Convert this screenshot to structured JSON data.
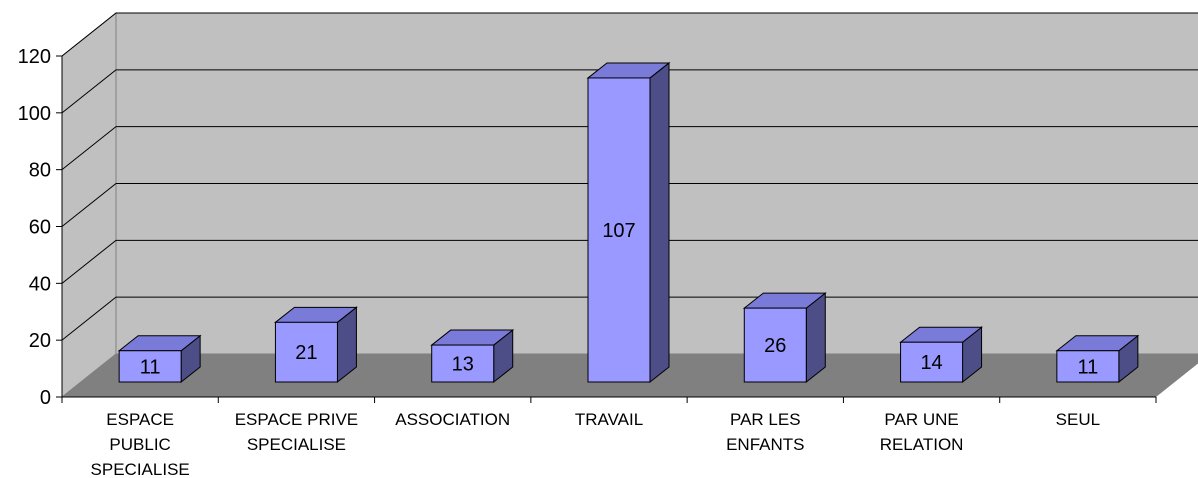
{
  "chart_data": {
    "type": "bar",
    "style": "3d-column",
    "title": "",
    "xlabel": "",
    "ylabel": "",
    "categories": [
      [
        "ESPACE",
        "PUBLIC",
        "SPECIALISE"
      ],
      [
        "ESPACE PRIVE",
        "SPECIALISE"
      ],
      [
        "ASSOCIATION"
      ],
      [
        "TRAVAIL"
      ],
      [
        "PAR LES",
        "ENFANTS"
      ],
      [
        "PAR UNE",
        "RELATION"
      ],
      [
        "SEUL"
      ]
    ],
    "values": [
      11,
      21,
      13,
      107,
      26,
      14,
      11
    ],
    "ylim": [
      0,
      120
    ],
    "yticks": [
      0,
      20,
      40,
      60,
      80,
      100,
      120
    ],
    "grid": true,
    "legend": "none",
    "data_labels": true
  },
  "colors": {
    "bar_front": "#9999ff",
    "bar_top": "#7a7ad8",
    "bar_side": "#4d4d87",
    "back_wall": "#c0c0c0",
    "side_wall": "#c0c0c0",
    "floor": "#808080",
    "gridline": "#000000"
  }
}
